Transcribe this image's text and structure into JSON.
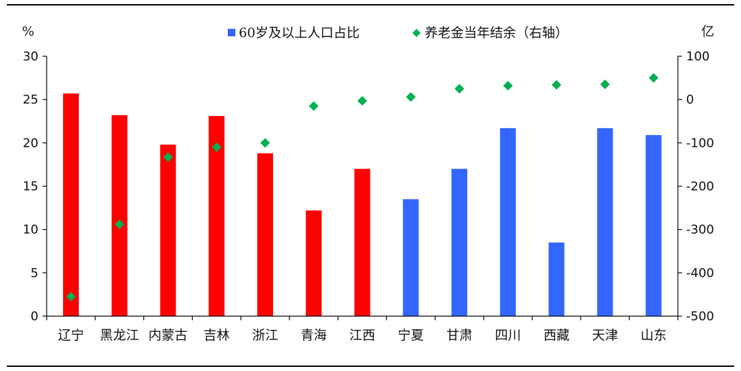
{
  "chart_data": {
    "type": "bar",
    "categories": [
      "辽宁",
      "黑龙江",
      "内蒙古",
      "吉林",
      "浙江",
      "青海",
      "江西",
      "宁夏",
      "甘肃",
      "四川",
      "西藏",
      "天津",
      "山东"
    ],
    "series": [
      {
        "name": "60岁及以上人口占比",
        "type": "bar",
        "axis": "left",
        "values": [
          25.7,
          23.2,
          19.8,
          23.1,
          18.8,
          12.2,
          17.0,
          13.5,
          17.0,
          21.7,
          8.5,
          21.7,
          20.9
        ],
        "colors": [
          "#ff0000",
          "#ff0000",
          "#ff0000",
          "#ff0000",
          "#ff0000",
          "#ff0000",
          "#ff0000",
          "#3366ff",
          "#3366ff",
          "#3366ff",
          "#3366ff",
          "#3366ff",
          "#3366ff"
        ]
      },
      {
        "name": "养老金当年结余（右轴）",
        "type": "scatter",
        "marker": "diamond",
        "axis": "right",
        "color": "#00b050",
        "values": [
          -455,
          -288,
          -133,
          -110,
          -100,
          -15,
          -3,
          6,
          25,
          32,
          34,
          35,
          50
        ]
      }
    ],
    "left_axis": {
      "unit": "%",
      "min": 0,
      "max": 30,
      "ticks": [
        0,
        5,
        10,
        15,
        20,
        25,
        30
      ]
    },
    "right_axis": {
      "unit": "亿",
      "min": -500,
      "max": 100,
      "ticks": [
        100,
        0,
        -100,
        -200,
        -300,
        -400,
        -500
      ]
    },
    "legend_position": "top",
    "grid": false
  }
}
